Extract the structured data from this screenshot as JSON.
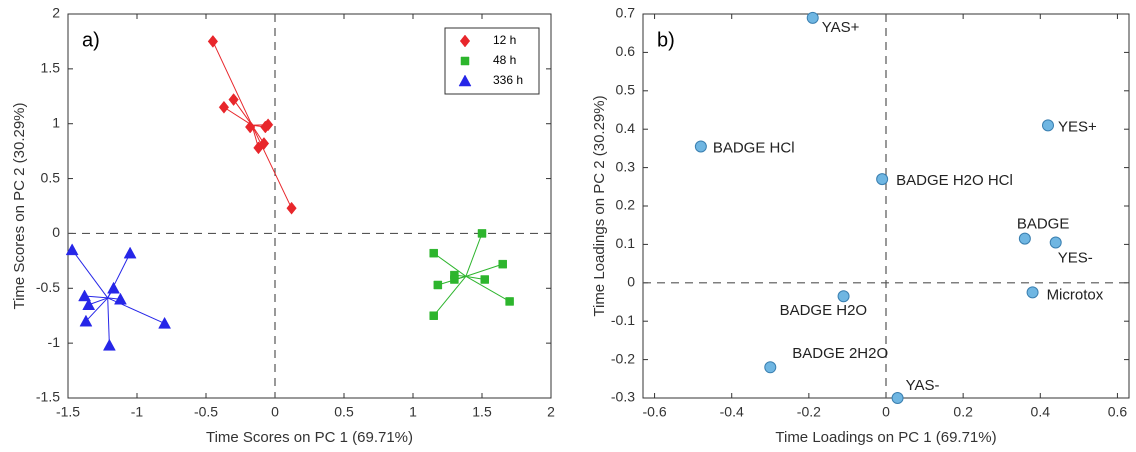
{
  "chart_data": [
    {
      "type": "scatter",
      "panel_label": "a)",
      "x_label": "Time Scores on PC 1 (69.71%)",
      "y_label": "Time Scores on PC 2 (30.29%)",
      "xlim": [
        -1.5,
        2
      ],
      "ylim": [
        -1.5,
        2
      ],
      "xticks": [
        -1.5,
        -1,
        -0.5,
        0,
        0.5,
        1,
        1.5,
        2
      ],
      "yticks": [
        -1.5,
        -1,
        -0.5,
        0,
        0.5,
        1,
        1.5,
        2
      ],
      "reference_lines": true,
      "star_lines": true,
      "legend": "top-right",
      "series": [
        {
          "name": "12 h",
          "color": "#e8262b",
          "marker": "diamond",
          "x": [
            -0.45,
            -0.37,
            -0.3,
            -0.18,
            -0.12,
            -0.08,
            -0.07,
            -0.05,
            0.12
          ],
          "values": [
            1.75,
            1.15,
            1.22,
            0.97,
            0.78,
            0.82,
            0.97,
            0.99,
            0.23
          ]
        },
        {
          "name": "48 h",
          "color": "#2db52d",
          "marker": "square",
          "x": [
            1.15,
            1.18,
            1.15,
            1.3,
            1.3,
            1.5,
            1.52,
            1.65,
            1.7
          ],
          "values": [
            -0.18,
            -0.47,
            -0.75,
            -0.38,
            -0.42,
            0,
            -0.42,
            -0.28,
            -0.62
          ]
        },
        {
          "name": "336 h",
          "color": "#2626e8",
          "marker": "triangle",
          "x": [
            -1.47,
            -1.38,
            -1.35,
            -1.37,
            -1.2,
            -1.17,
            -1.12,
            -1.05,
            -0.8
          ],
          "values": [
            -0.15,
            -0.57,
            -0.65,
            -0.8,
            -1.02,
            -0.5,
            -0.6,
            -0.18,
            -0.82
          ]
        }
      ]
    },
    {
      "type": "scatter",
      "panel_label": "b)",
      "x_label": "Time Loadings on PC 1 (69.71%)",
      "y_label": "Time Loadings on PC 2 (30.29%)",
      "xlim": [
        -0.63,
        0.63
      ],
      "ylim": [
        -0.3,
        0.7
      ],
      "xticks": [
        -0.6,
        -0.4,
        -0.2,
        0,
        0.2,
        0.4,
        0.6
      ],
      "yticks": [
        -0.3,
        -0.2,
        -0.1,
        0,
        0.1,
        0.2,
        0.3,
        0.4,
        0.5,
        0.6,
        0.7
      ],
      "reference_lines": true,
      "star_lines": false,
      "series": [
        {
          "color": "#6fb6e2",
          "marker": "circle",
          "labels": [
            "YAS+",
            "BADGE HCl",
            "BADGE H2O HCl",
            "YES+",
            "BADGE",
            "YES-",
            "Microtox",
            "BADGE H2O",
            "BADGE 2H2O",
            "YAS-"
          ],
          "x": [
            -0.19,
            -0.48,
            -0.01,
            0.42,
            0.36,
            0.44,
            0.38,
            -0.11,
            -0.3,
            0.03
          ],
          "values": [
            0.69,
            0.355,
            0.27,
            0.41,
            0.115,
            0.105,
            -0.025,
            -0.035,
            -0.22,
            -0.3
          ]
        }
      ]
    }
  ]
}
